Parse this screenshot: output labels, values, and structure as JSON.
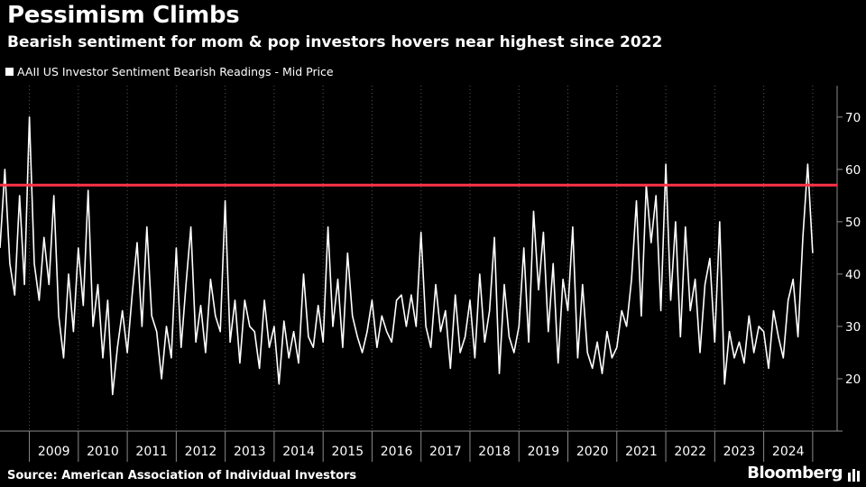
{
  "title": "Pessimism Climbs",
  "subtitle": "Bearish sentiment for mom & pop investors hovers near highest since 2022",
  "source": "Source: American Association of Individual Investors",
  "brand": "Bloomberg",
  "colors": {
    "background": "#000000",
    "series": "#ffffff",
    "reference_line": "#ff3347",
    "grid": "#555555"
  },
  "chart_data": {
    "type": "line",
    "title": "Pessimism Climbs",
    "subtitle": "Bearish sentiment for mom & pop investors hovers near highest since 2022",
    "xlabel": "",
    "ylabel": "",
    "x_tick_labels": [
      "2009",
      "2010",
      "2011",
      "2012",
      "2013",
      "2014",
      "2015",
      "2016",
      "2017",
      "2018",
      "2019",
      "2020",
      "2021",
      "2022",
      "2023",
      "2024"
    ],
    "xlim": [
      2008.4,
      2025.5
    ],
    "y_ticks": [
      20,
      30,
      40,
      50,
      60,
      70
    ],
    "ylim": [
      10,
      76
    ],
    "y_axis_side": "right",
    "grid": "vertical dotted",
    "legend": {
      "position": "top-left",
      "entries": [
        "AAII US Investor Sentiment Bearish Readings - Mid Price"
      ]
    },
    "reference_line": {
      "y": 57,
      "color": "#ff3347"
    },
    "series": [
      {
        "name": "AAII US Investor Sentiment Bearish Readings - Mid Price",
        "color": "#ffffff",
        "x": [
          2008.4,
          2008.5,
          2008.6,
          2008.7,
          2008.8,
          2008.9,
          2009.0,
          2009.1,
          2009.2,
          2009.3,
          2009.4,
          2009.5,
          2009.6,
          2009.7,
          2009.8,
          2009.9,
          2010.0,
          2010.1,
          2010.2,
          2010.3,
          2010.4,
          2010.5,
          2010.6,
          2010.7,
          2010.8,
          2010.9,
          2011.0,
          2011.1,
          2011.2,
          2011.3,
          2011.4,
          2011.5,
          2011.6,
          2011.7,
          2011.8,
          2011.9,
          2012.0,
          2012.1,
          2012.2,
          2012.3,
          2012.4,
          2012.5,
          2012.6,
          2012.7,
          2012.8,
          2012.9,
          2013.0,
          2013.1,
          2013.2,
          2013.3,
          2013.4,
          2013.5,
          2013.6,
          2013.7,
          2013.8,
          2013.9,
          2014.0,
          2014.1,
          2014.2,
          2014.3,
          2014.4,
          2014.5,
          2014.6,
          2014.7,
          2014.8,
          2014.9,
          2015.0,
          2015.1,
          2015.2,
          2015.3,
          2015.4,
          2015.5,
          2015.6,
          2015.7,
          2015.8,
          2015.9,
          2016.0,
          2016.1,
          2016.2,
          2016.3,
          2016.4,
          2016.5,
          2016.6,
          2016.7,
          2016.8,
          2016.9,
          2017.0,
          2017.1,
          2017.2,
          2017.3,
          2017.4,
          2017.5,
          2017.6,
          2017.7,
          2017.8,
          2017.9,
          2018.0,
          2018.1,
          2018.2,
          2018.3,
          2018.4,
          2018.5,
          2018.6,
          2018.7,
          2018.8,
          2018.9,
          2019.0,
          2019.1,
          2019.2,
          2019.3,
          2019.4,
          2019.5,
          2019.6,
          2019.7,
          2019.8,
          2019.9,
          2020.0,
          2020.1,
          2020.2,
          2020.3,
          2020.4,
          2020.5,
          2020.6,
          2020.7,
          2020.8,
          2020.9,
          2021.0,
          2021.1,
          2021.2,
          2021.3,
          2021.4,
          2021.5,
          2021.6,
          2021.7,
          2021.8,
          2021.9,
          2022.0,
          2022.1,
          2022.2,
          2022.3,
          2022.4,
          2022.5,
          2022.6,
          2022.7,
          2022.8,
          2022.9,
          2023.0,
          2023.1,
          2023.2,
          2023.3,
          2023.4,
          2023.5,
          2023.6,
          2023.7,
          2023.8,
          2023.9,
          2024.0,
          2024.1,
          2024.2,
          2024.3,
          2024.4,
          2024.5,
          2024.6,
          2024.7,
          2024.8,
          2024.9,
          2025.0
        ],
        "values": [
          45,
          60,
          42,
          36,
          55,
          38,
          70,
          42,
          35,
          47,
          38,
          55,
          32,
          24,
          40,
          29,
          45,
          34,
          56,
          30,
          38,
          24,
          35,
          17,
          26,
          33,
          25,
          36,
          46,
          30,
          49,
          32,
          29,
          20,
          30,
          24,
          45,
          26,
          38,
          49,
          27,
          34,
          25,
          39,
          32,
          29,
          54,
          27,
          35,
          23,
          35,
          30,
          29,
          22,
          35,
          26,
          30,
          19,
          31,
          24,
          29,
          23,
          40,
          28,
          26,
          34,
          27,
          49,
          30,
          39,
          26,
          44,
          32,
          28,
          25,
          29,
          35,
          26,
          32,
          29,
          27,
          35,
          36,
          30,
          36,
          30,
          48,
          30,
          26,
          38,
          29,
          33,
          22,
          36,
          25,
          28,
          35,
          24,
          40,
          27,
          33,
          47,
          21,
          38,
          28,
          25,
          30,
          45,
          27,
          52,
          37,
          48,
          29,
          42,
          23,
          39,
          33,
          49,
          24,
          38,
          25,
          22,
          27,
          21,
          29,
          24,
          26,
          33,
          30,
          39,
          54,
          32,
          57,
          46,
          55,
          33,
          61,
          35,
          50,
          28,
          49,
          33,
          39,
          25,
          38,
          43,
          27,
          50,
          19,
          29,
          24,
          27,
          23,
          32,
          25,
          30,
          29,
          22,
          33,
          28,
          24,
          35,
          39,
          28,
          47,
          61,
          44
        ]
      }
    ]
  }
}
